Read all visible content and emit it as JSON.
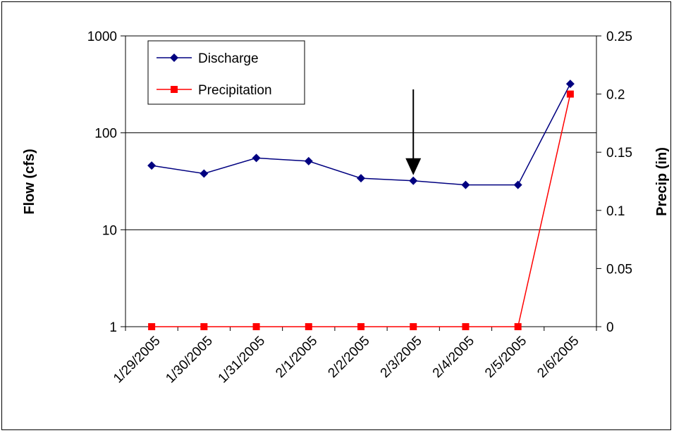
{
  "chart_data": {
    "type": "line",
    "categories": [
      "1/29/2005",
      "1/30/2005",
      "1/31/2005",
      "2/1/2005",
      "2/2/2005",
      "2/3/2005",
      "2/4/2005",
      "2/5/2005",
      "2/6/2005"
    ],
    "series": [
      {
        "name": "Discharge",
        "axis": "left",
        "marker": "diamond",
        "color": "#000080",
        "values": [
          46,
          38,
          55,
          51,
          34,
          32,
          29,
          29,
          320
        ]
      },
      {
        "name": "Precipitation",
        "axis": "right",
        "marker": "square",
        "color": "#ff0000",
        "values": [
          0,
          0,
          0,
          0,
          0,
          0,
          0,
          0,
          0.2
        ]
      }
    ],
    "y_left": {
      "label": "Flow (cfs)",
      "scale": "log",
      "range": [
        1,
        1000
      ],
      "ticks": [
        "1",
        "10",
        "100",
        "1000"
      ]
    },
    "y_right": {
      "label": "Precip (in)",
      "scale": "linear",
      "range": [
        0,
        0.25
      ],
      "ticks": [
        "0",
        "0.05",
        "0.1",
        "0.15",
        "0.2",
        "0.25"
      ]
    },
    "gridlines": "horizontal major (left axis)",
    "legend": "top-left inside plot",
    "annotation": {
      "type": "arrow",
      "points_to": "2/3/2005",
      "color": "#000000"
    }
  }
}
